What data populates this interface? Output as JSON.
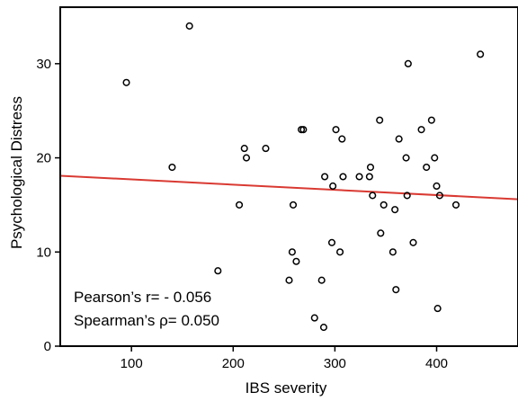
{
  "chart_data": {
    "type": "scatter",
    "title": "",
    "xlabel": "IBS severity",
    "ylabel": "Psychological Distress",
    "xlim": [
      30,
      480
    ],
    "ylim": [
      0,
      36
    ],
    "xticks": [
      100,
      200,
      300,
      400
    ],
    "yticks": [
      0,
      10,
      20,
      30
    ],
    "grid": false,
    "legend": "none",
    "colors": {
      "points": "#000000",
      "fit_line": "#d93a32"
    },
    "series": [
      {
        "points": [
          {
            "x": 95,
            "y": 28
          },
          {
            "x": 140,
            "y": 19
          },
          {
            "x": 157,
            "y": 34
          },
          {
            "x": 185,
            "y": 8
          },
          {
            "x": 206,
            "y": 15
          },
          {
            "x": 211,
            "y": 21
          },
          {
            "x": 213,
            "y": 20
          },
          {
            "x": 232,
            "y": 21
          },
          {
            "x": 255,
            "y": 7
          },
          {
            "x": 258,
            "y": 10
          },
          {
            "x": 259,
            "y": 15
          },
          {
            "x": 262,
            "y": 9
          },
          {
            "x": 267,
            "y": 23
          },
          {
            "x": 269,
            "y": 23
          },
          {
            "x": 280,
            "y": 3
          },
          {
            "x": 287,
            "y": 7
          },
          {
            "x": 289,
            "y": 2
          },
          {
            "x": 290,
            "y": 18
          },
          {
            "x": 297,
            "y": 11
          },
          {
            "x": 298,
            "y": 17
          },
          {
            "x": 301,
            "y": 23
          },
          {
            "x": 305,
            "y": 10
          },
          {
            "x": 307,
            "y": 22
          },
          {
            "x": 308,
            "y": 18
          },
          {
            "x": 324,
            "y": 18
          },
          {
            "x": 334,
            "y": 18
          },
          {
            "x": 335,
            "y": 19
          },
          {
            "x": 337,
            "y": 16
          },
          {
            "x": 344,
            "y": 24
          },
          {
            "x": 345,
            "y": 12
          },
          {
            "x": 348,
            "y": 15
          },
          {
            "x": 357,
            "y": 10
          },
          {
            "x": 359,
            "y": 14.5
          },
          {
            "x": 360,
            "y": 6
          },
          {
            "x": 363,
            "y": 22
          },
          {
            "x": 370,
            "y": 20
          },
          {
            "x": 371,
            "y": 16
          },
          {
            "x": 372,
            "y": 30
          },
          {
            "x": 377,
            "y": 11
          },
          {
            "x": 385,
            "y": 23
          },
          {
            "x": 390,
            "y": 19
          },
          {
            "x": 395,
            "y": 24
          },
          {
            "x": 398,
            "y": 20
          },
          {
            "x": 400,
            "y": 17
          },
          {
            "x": 401,
            "y": 4
          },
          {
            "x": 403,
            "y": 16
          },
          {
            "x": 419,
            "y": 15
          },
          {
            "x": 443,
            "y": 31
          }
        ]
      }
    ],
    "fit_line": {
      "x": [
        30,
        480
      ],
      "y": [
        18.1,
        15.6
      ]
    },
    "annotations": [
      "Pearson’s r= - 0.056",
      "Spearman’s ρ= 0.050"
    ]
  }
}
